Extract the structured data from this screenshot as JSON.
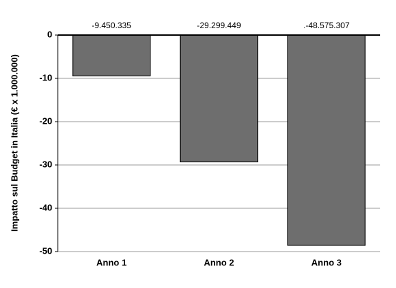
{
  "chart_data": {
    "type": "bar",
    "y_label": "Impatto sul Budget in Italia (€ x 1.000.000)",
    "categories": [
      "Anno 1",
      "Anno 2",
      "Anno 3"
    ],
    "values": [
      -9.450335,
      -29.299449,
      -48.575307
    ],
    "value_labels": [
      "-9.450.335",
      "-29.299.449",
      ".-48.575.307"
    ],
    "color": "#6e6e6e",
    "ylim": [
      -50,
      0
    ],
    "yticks": [
      0,
      -10,
      -20,
      -30,
      -40,
      -50
    ],
    "grid": true
  }
}
